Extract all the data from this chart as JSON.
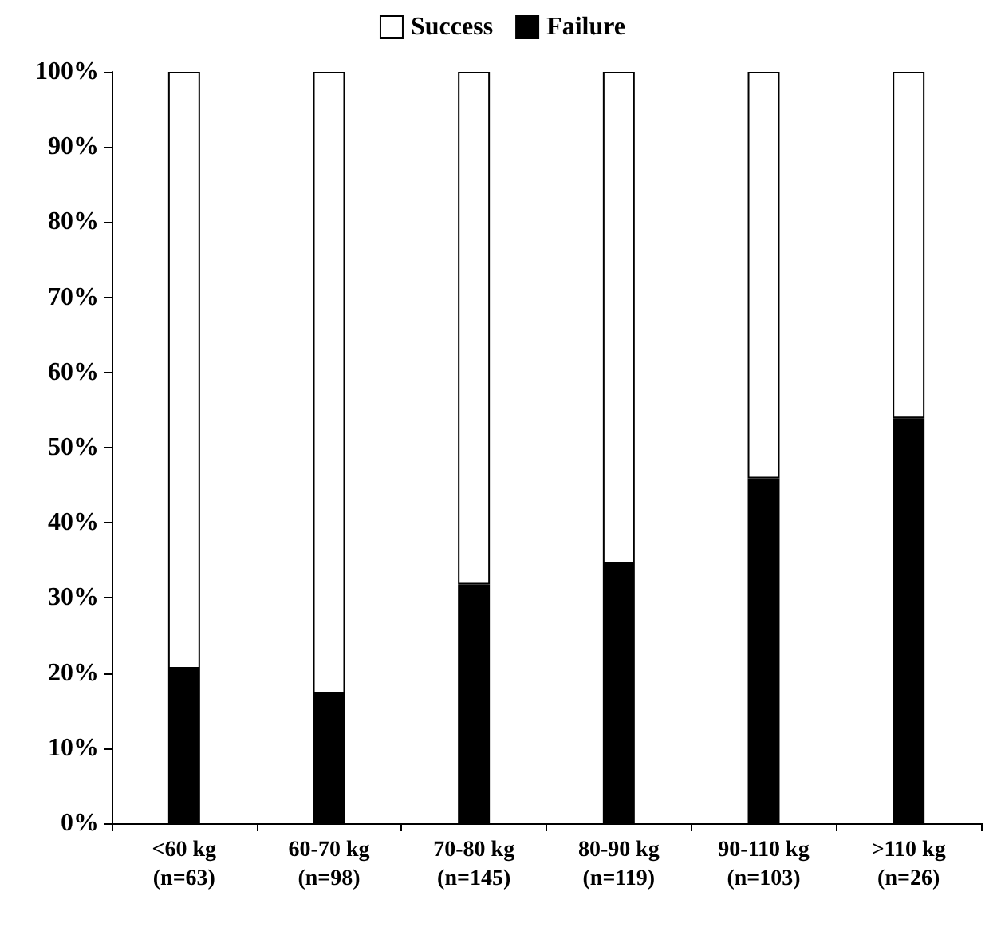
{
  "chart_data": {
    "type": "bar",
    "stacked": true,
    "categories": [
      "<60 kg\n(n=63)",
      "60-70 kg\n(n=98)",
      "70-80 kg\n(n=145)",
      "80-90 kg\n(n=119)",
      "90-110 kg\n(n=103)",
      ">110 kg\n(n=26)"
    ],
    "series": [
      {
        "name": "Failure",
        "color": "#000000",
        "values": [
          20.6,
          17.2,
          31.8,
          34.6,
          45.9,
          53.9
        ]
      },
      {
        "name": "Success",
        "color": "#ffffff",
        "values": [
          79.4,
          82.8,
          68.2,
          65.4,
          54.1,
          46.1
        ]
      }
    ],
    "ylim": [
      0,
      100
    ],
    "yticks": [
      {
        "value": 0,
        "label": "0%"
      },
      {
        "value": 10,
        "label": "10%"
      },
      {
        "value": 20,
        "label": "20%"
      },
      {
        "value": 30,
        "label": "30%"
      },
      {
        "value": 40,
        "label": "40%"
      },
      {
        "value": 50,
        "label": "50%"
      },
      {
        "value": 60,
        "label": "60%"
      },
      {
        "value": 70,
        "label": "70%"
      },
      {
        "value": 80,
        "label": "80%"
      },
      {
        "value": 90,
        "label": "90%"
      },
      {
        "value": 100,
        "label": "100%"
      }
    ],
    "grid": false,
    "legend": "top"
  }
}
